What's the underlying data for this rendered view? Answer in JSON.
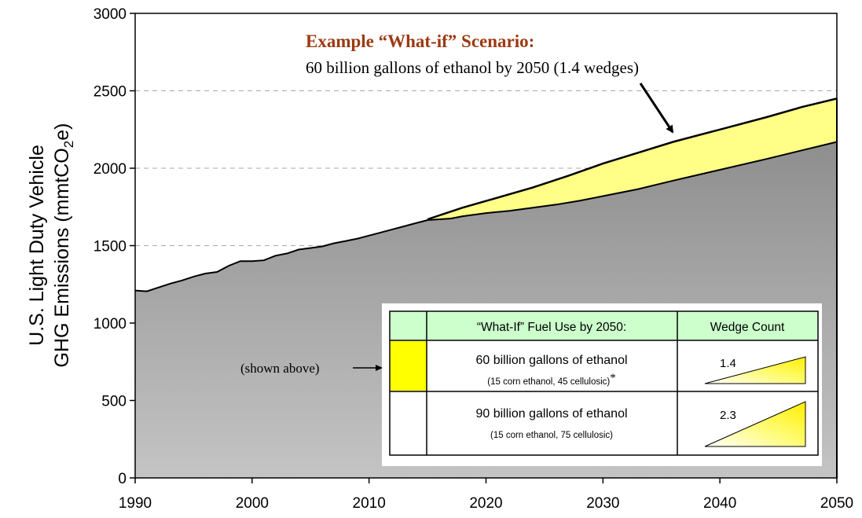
{
  "chart_data": {
    "type": "area",
    "title": "",
    "xlabel": "",
    "ylabel_line1": "U.S. Light Duty Vehicle",
    "ylabel_line2_prefix": "GHG Emissions (mmtCO",
    "ylabel_line2_sub": "2",
    "ylabel_line2_suffix": "e)",
    "xlim": [
      1990,
      2050
    ],
    "ylim": [
      0,
      3000
    ],
    "x_ticks": [
      1990,
      2000,
      2010,
      2020,
      2030,
      2040,
      2050
    ],
    "y_ticks": [
      0,
      500,
      1000,
      1500,
      2000,
      2500,
      3000
    ],
    "gridlines": [
      1500,
      2000,
      2500
    ],
    "series": [
      {
        "name": "",
        "color": "#a0a0a0",
        "x": [
          1990,
          1991,
          1992,
          1993,
          1994,
          1995,
          1996,
          1997,
          1998,
          1999,
          2000,
          2001,
          2002,
          2003,
          2004,
          2005,
          2006,
          2007,
          2008,
          2009,
          2010,
          2011,
          2012,
          2013,
          2014,
          2015,
          2017,
          2018,
          2020,
          2022,
          2024,
          2026,
          2028,
          2030,
          2033,
          2036,
          2040,
          2044,
          2047,
          2050
        ],
        "values": [
          1210,
          1205,
          1230,
          1255,
          1275,
          1300,
          1320,
          1330,
          1370,
          1400,
          1400,
          1405,
          1435,
          1450,
          1475,
          1485,
          1495,
          1515,
          1530,
          1545,
          1565,
          1585,
          1605,
          1625,
          1645,
          1665,
          1675,
          1690,
          1710,
          1725,
          1745,
          1765,
          1790,
          1820,
          1865,
          1920,
          1990,
          2060,
          2115,
          2170
        ]
      },
      {
        "name": "",
        "color": "#ffff88",
        "x": [
          2015,
          2018,
          2021,
          2024,
          2027,
          2030,
          2033,
          2036,
          2040,
          2044,
          2047,
          2050
        ],
        "values": [
          1670,
          1745,
          1810,
          1875,
          1950,
          2030,
          2100,
          2170,
          2250,
          2330,
          2395,
          2450
        ]
      }
    ],
    "annotation": {
      "title": "Example “What-if” Scenario:",
      "subtitle": "60 billion gallons of ethanol by 2050 (1.4 wedges)"
    },
    "shown_label": "(shown above)",
    "table": {
      "headers": [
        "“What-If” Fuel Use by 2050:",
        "Wedge Count"
      ],
      "rows": [
        {
          "swatch": "#ffff00",
          "main": "60 billion gallons of ethanol",
          "detail": "(15 corn ethanol, 45 cellulosic)",
          "mark": "*",
          "wedge": "1.4"
        },
        {
          "swatch": "#ffffff",
          "main": "90 billion gallons of ethanol",
          "detail": "(15 corn ethanol, 75 cellulosic)",
          "mark": "",
          "wedge": "2.3"
        }
      ]
    }
  }
}
